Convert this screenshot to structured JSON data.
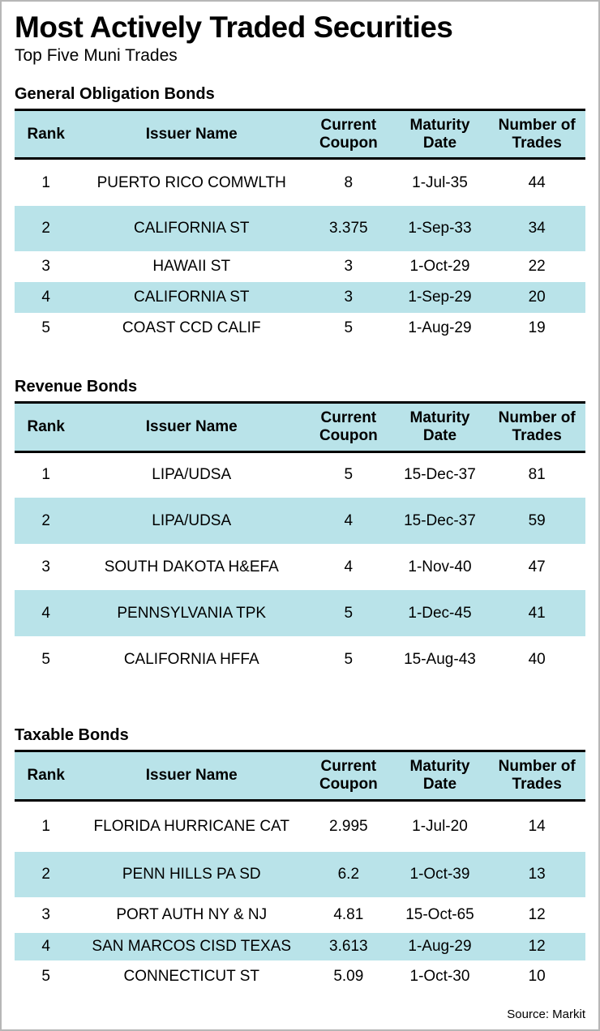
{
  "header": {
    "title": "Most Actively Traded Securities",
    "subtitle": "Top Five Muni Trades"
  },
  "colors": {
    "accent": "#b9e3e9"
  },
  "footer": {
    "source": "Source: Markit"
  },
  "chart_data": [
    {
      "type": "table",
      "title": "General Obligation Bonds",
      "headers": [
        "Rank",
        "Issuer Name",
        "Current\nCoupon",
        "Maturity\nDate",
        "Number of\nTrades"
      ],
      "rows": [
        [
          "1",
          "PUERTO RICO COMWLTH",
          "8",
          "1-Jul-35",
          "44"
        ],
        [
          "2",
          "CALIFORNIA ST",
          "3.375",
          "1-Sep-33",
          "34"
        ],
        [
          "3",
          "HAWAII ST",
          "3",
          "1-Oct-29",
          "22"
        ],
        [
          "4",
          "CALIFORNIA ST",
          "3",
          "1-Sep-29",
          "20"
        ],
        [
          "5",
          "COAST CCD CALIF",
          "5",
          "1-Aug-29",
          "19"
        ]
      ]
    },
    {
      "type": "table",
      "title": "Revenue Bonds",
      "headers": [
        "Rank",
        "Issuer Name",
        "Current\nCoupon",
        "Maturity\nDate",
        "Number of\nTrades"
      ],
      "rows": [
        [
          "1",
          "LIPA/UDSA",
          "5",
          "15-Dec-37",
          "81"
        ],
        [
          "2",
          "LIPA/UDSA",
          "4",
          "15-Dec-37",
          "59"
        ],
        [
          "3",
          "SOUTH DAKOTA H&EFA",
          "4",
          "1-Nov-40",
          "47"
        ],
        [
          "4",
          "PENNSYLVANIA TPK",
          "5",
          "1-Dec-45",
          "41"
        ],
        [
          "5",
          "CALIFORNIA HFFA",
          "5",
          "15-Aug-43",
          "40"
        ]
      ]
    },
    {
      "type": "table",
      "title": "Taxable Bonds",
      "headers": [
        "Rank",
        "Issuer Name",
        "Current\nCoupon",
        "Maturity\nDate",
        "Number of\nTrades"
      ],
      "rows": [
        [
          "1",
          "FLORIDA HURRICANE CAT",
          "2.995",
          "1-Jul-20",
          "14"
        ],
        [
          "2",
          "PENN HILLS PA SD",
          "6.2",
          "1-Oct-39",
          "13"
        ],
        [
          "3",
          "PORT AUTH NY & NJ",
          "4.81",
          "15-Oct-65",
          "12"
        ],
        [
          "4",
          "SAN MARCOS CISD TEXAS",
          "3.613",
          "1-Aug-29",
          "12"
        ],
        [
          "5",
          "CONNECTICUT ST",
          "5.09",
          "1-Oct-30",
          "10"
        ]
      ]
    }
  ]
}
